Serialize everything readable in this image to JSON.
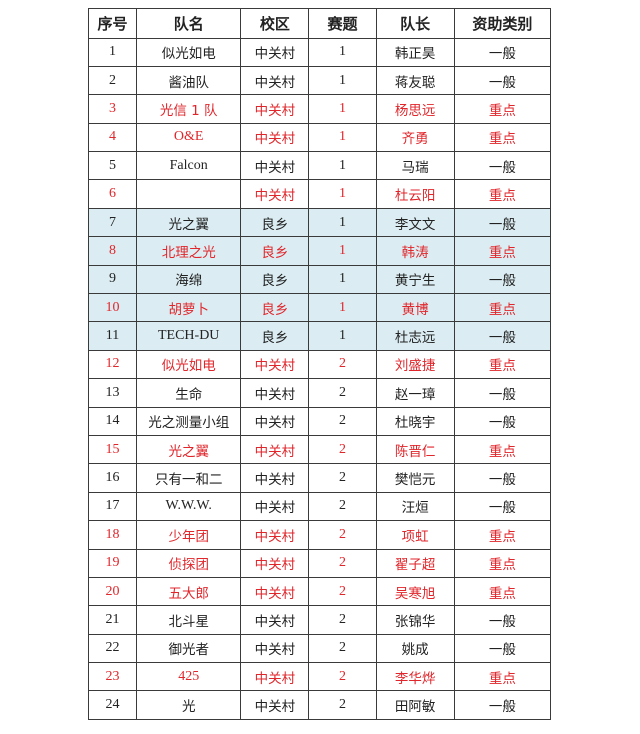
{
  "header": {
    "no": "序号",
    "team": "队名",
    "campus": "校区",
    "topic": "赛题",
    "captain": "队长",
    "funding": "资助类别"
  },
  "colors": {
    "highlight": "#e0262b",
    "shaded_bg": "#dbedf3"
  },
  "rows": [
    {
      "no": "1",
      "team": "似光如电",
      "campus": "中关村",
      "topic": "1",
      "captain": "韩正昊",
      "funding": "一般",
      "highlight": false,
      "shaded": false
    },
    {
      "no": "2",
      "team": "酱油队",
      "campus": "中关村",
      "topic": "1",
      "captain": "蒋友聪",
      "funding": "一般",
      "highlight": false,
      "shaded": false
    },
    {
      "no": "3",
      "team": "光信 1 队",
      "campus": "中关村",
      "topic": "1",
      "captain": "杨思远",
      "funding": "重点",
      "highlight": true,
      "shaded": false
    },
    {
      "no": "4",
      "team": "O&E",
      "campus": "中关村",
      "topic": "1",
      "captain": "齐勇",
      "funding": "重点",
      "highlight": true,
      "shaded": false
    },
    {
      "no": "5",
      "team": "Falcon",
      "campus": "中关村",
      "topic": "1",
      "captain": "马瑞",
      "funding": "一般",
      "highlight": false,
      "shaded": false
    },
    {
      "no": "6",
      "team": "",
      "campus": "中关村",
      "topic": "1",
      "captain": "杜云阳",
      "funding": "重点",
      "highlight": true,
      "shaded": false
    },
    {
      "no": "7",
      "team": "光之翼",
      "campus": "良乡",
      "topic": "1",
      "captain": "李文文",
      "funding": "一般",
      "highlight": false,
      "shaded": true
    },
    {
      "no": "8",
      "team": "北理之光",
      "campus": "良乡",
      "topic": "1",
      "captain": "韩涛",
      "funding": "重点",
      "highlight": true,
      "shaded": true
    },
    {
      "no": "9",
      "team": "海绵",
      "campus": "良乡",
      "topic": "1",
      "captain": "黄宁生",
      "funding": "一般",
      "highlight": false,
      "shaded": true
    },
    {
      "no": "10",
      "team": "胡萝卜",
      "campus": "良乡",
      "topic": "1",
      "captain": "黄博",
      "funding": "重点",
      "highlight": true,
      "shaded": true
    },
    {
      "no": "11",
      "team": "TECH-DU",
      "campus": "良乡",
      "topic": "1",
      "captain": "杜志远",
      "funding": "一般",
      "highlight": false,
      "shaded": true
    },
    {
      "no": "12",
      "team": "似光如电",
      "campus": "中关村",
      "topic": "2",
      "captain": "刘盛捷",
      "funding": "重点",
      "highlight": true,
      "shaded": false
    },
    {
      "no": "13",
      "team": "生命",
      "campus": "中关村",
      "topic": "2",
      "captain": "赵一璋",
      "funding": "一般",
      "highlight": false,
      "shaded": false
    },
    {
      "no": "14",
      "team": "光之测量小组",
      "campus": "中关村",
      "topic": "2",
      "captain": "杜晓宇",
      "funding": "一般",
      "highlight": false,
      "shaded": false
    },
    {
      "no": "15",
      "team": "光之翼",
      "campus": "中关村",
      "topic": "2",
      "captain": "陈晋仁",
      "funding": "重点",
      "highlight": true,
      "shaded": false
    },
    {
      "no": "16",
      "team": "只有一和二",
      "campus": "中关村",
      "topic": "2",
      "captain": "樊恺元",
      "funding": "一般",
      "highlight": false,
      "shaded": false
    },
    {
      "no": "17",
      "team": "W.W.W.",
      "campus": "中关村",
      "topic": "2",
      "captain": "汪烜",
      "funding": "一般",
      "highlight": false,
      "shaded": false
    },
    {
      "no": "18",
      "team": "少年团",
      "campus": "中关村",
      "topic": "2",
      "captain": "项虹",
      "funding": "重点",
      "highlight": true,
      "shaded": false
    },
    {
      "no": "19",
      "team": "侦探团",
      "campus": "中关村",
      "topic": "2",
      "captain": "翟子超",
      "funding": "重点",
      "highlight": true,
      "shaded": false
    },
    {
      "no": "20",
      "team": "五大郎",
      "campus": "中关村",
      "topic": "2",
      "captain": "吴寒旭",
      "funding": "重点",
      "highlight": true,
      "shaded": false
    },
    {
      "no": "21",
      "team": "北斗星",
      "campus": "中关村",
      "topic": "2",
      "captain": "张锦华",
      "funding": "一般",
      "highlight": false,
      "shaded": false
    },
    {
      "no": "22",
      "team": "御光者",
      "campus": "中关村",
      "topic": "2",
      "captain": "姚成",
      "funding": "一般",
      "highlight": false,
      "shaded": false
    },
    {
      "no": "23",
      "team": "425",
      "campus": "中关村",
      "topic": "2",
      "captain": "李华烨",
      "funding": "重点",
      "highlight": true,
      "shaded": false
    },
    {
      "no": "24",
      "team": "光",
      "campus": "中关村",
      "topic": "2",
      "captain": "田阿敏",
      "funding": "一般",
      "highlight": false,
      "shaded": false
    }
  ]
}
